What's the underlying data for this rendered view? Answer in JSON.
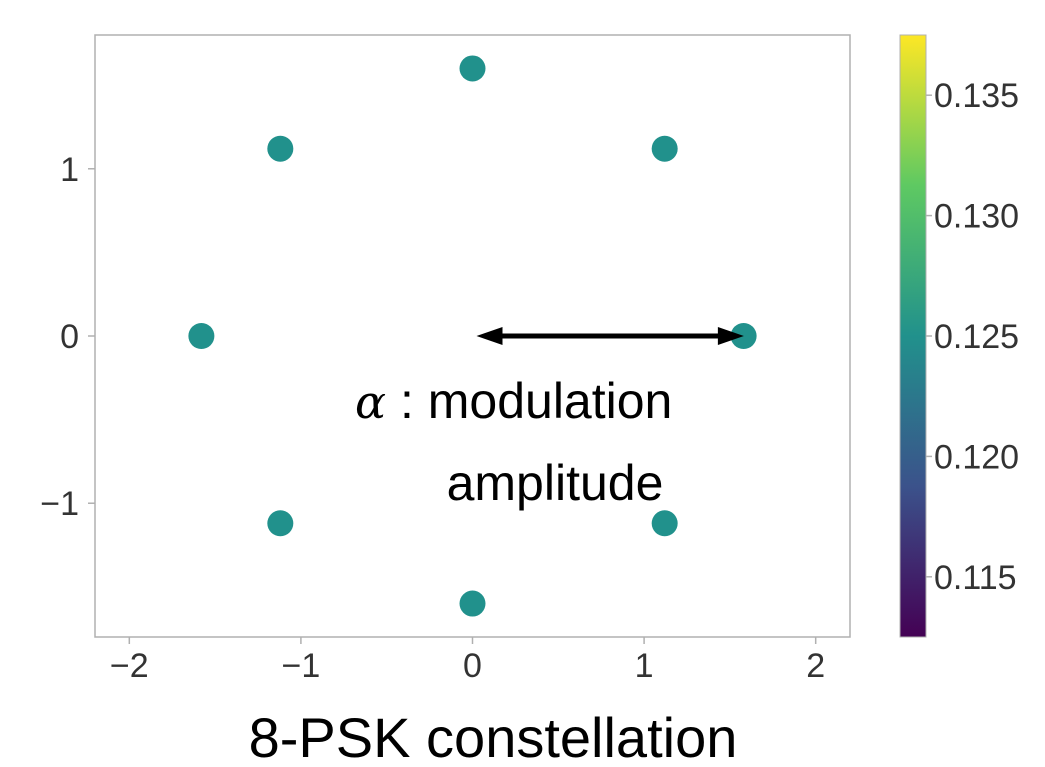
{
  "chart_data": {
    "type": "scatter",
    "title": "",
    "xlabel": "",
    "ylabel": "",
    "xlim": [
      -2.2,
      2.2
    ],
    "ylim": [
      -1.8,
      1.8
    ],
    "xticks": [
      -2,
      -1,
      0,
      1,
      2
    ],
    "yticks": [
      -1,
      0,
      1
    ],
    "xtick_labels": [
      "−2",
      "−1",
      "0",
      "1",
      "2"
    ],
    "ytick_labels": [
      "−1",
      "0",
      "1"
    ],
    "grid": false,
    "points": [
      {
        "x": 1.58,
        "y": 0.0
      },
      {
        "x": 1.12,
        "y": 1.12
      },
      {
        "x": 0.0,
        "y": 1.6
      },
      {
        "x": -1.12,
        "y": 1.12
      },
      {
        "x": -1.58,
        "y": 0.0
      },
      {
        "x": -1.12,
        "y": -1.12
      },
      {
        "x": 0.0,
        "y": -1.6
      },
      {
        "x": 1.12,
        "y": -1.12
      }
    ],
    "point_value": 0.125,
    "point_color": "#21918c",
    "colorbar": {
      "range": [
        0.1125,
        0.1375
      ],
      "ticks": [
        0.115,
        0.12,
        0.125,
        0.13,
        0.135
      ],
      "tick_labels": [
        "0.115",
        "0.120",
        "0.125",
        "0.130",
        "0.135"
      ],
      "colormap": "viridis",
      "colors": [
        "#440154",
        "#3b528b",
        "#21918c",
        "#5ec962",
        "#fde725"
      ]
    },
    "annotation": {
      "arrow": {
        "x_start": 0.0,
        "x_end": 1.5,
        "y": 0.0,
        "double_headed": true
      },
      "symbol": "α",
      "line1": " : modulation",
      "line2": "amplitude"
    },
    "caption": "8-PSK constellation"
  }
}
